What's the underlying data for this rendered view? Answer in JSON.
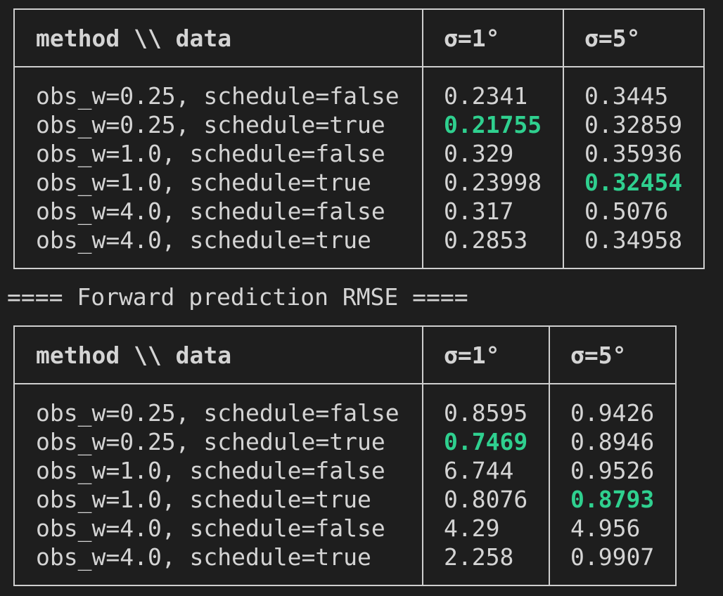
{
  "colors": {
    "background": "#1e1e1e",
    "text": "#d4d4d4",
    "border": "#cfcfcf",
    "best_highlight": "#2fd08f"
  },
  "table1": {
    "headers": [
      "method \\\\ data",
      "σ=1°",
      "σ=5°"
    ],
    "rows": [
      {
        "method": "obs_w=0.25, schedule=false",
        "s1": "0.2341",
        "s5": "0.3445"
      },
      {
        "method": "obs_w=0.25, schedule=true",
        "s1": "0.21755",
        "s5": "0.32859"
      },
      {
        "method": "obs_w=1.0, schedule=false",
        "s1": "0.329",
        "s5": "0.35936"
      },
      {
        "method": "obs_w=1.0, schedule=true",
        "s1": "0.23998",
        "s5": "0.32454"
      },
      {
        "method": "obs_w=4.0, schedule=false",
        "s1": "0.317",
        "s5": "0.5076"
      },
      {
        "method": "obs_w=4.0, schedule=true",
        "s1": "0.2853",
        "s5": "0.34958"
      }
    ],
    "best": {
      "s1_row": 1,
      "s5_row": 3
    }
  },
  "section_title": "==== Forward prediction RMSE ====",
  "table2": {
    "headers": [
      "method \\\\ data",
      "σ=1°",
      "σ=5°"
    ],
    "rows": [
      {
        "method": "obs_w=0.25, schedule=false",
        "s1": "0.8595",
        "s5": "0.9426"
      },
      {
        "method": "obs_w=0.25, schedule=true",
        "s1": "0.7469",
        "s5": "0.8946"
      },
      {
        "method": "obs_w=1.0, schedule=false",
        "s1": "6.744",
        "s5": "0.9526"
      },
      {
        "method": "obs_w=1.0, schedule=true",
        "s1": "0.8076",
        "s5": "0.8793"
      },
      {
        "method": "obs_w=4.0, schedule=false",
        "s1": "4.29",
        "s5": "4.956"
      },
      {
        "method": "obs_w=4.0, schedule=true",
        "s1": "2.258",
        "s5": "0.9907"
      }
    ],
    "best": {
      "s1_row": 1,
      "s5_row": 3
    }
  }
}
